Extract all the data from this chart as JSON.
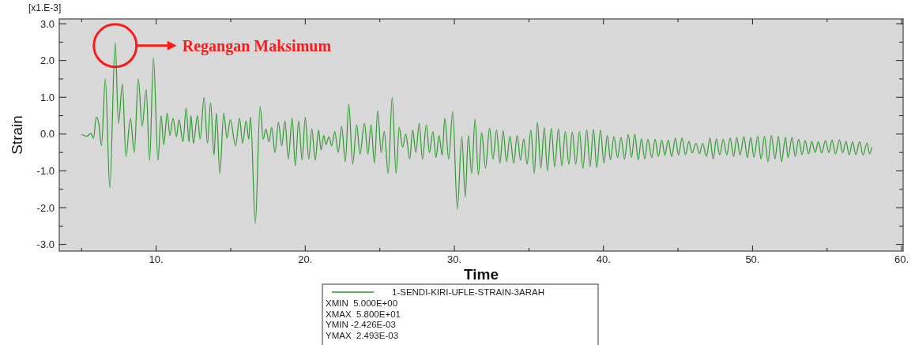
{
  "chart_data": {
    "type": "line",
    "xlabel": "Time",
    "ylabel": "Strain",
    "xlim": [
      3.5,
      60.1
    ],
    "ylim": [
      -3.18,
      3.13
    ],
    "xticks": [
      {
        "value": 5,
        "label": null
      },
      {
        "value": 10,
        "label": "10."
      },
      {
        "value": 15,
        "label": null
      },
      {
        "value": 20,
        "label": "20."
      },
      {
        "value": 25,
        "label": null
      },
      {
        "value": 30,
        "label": "30."
      },
      {
        "value": 35,
        "label": null
      },
      {
        "value": 40,
        "label": "40."
      },
      {
        "value": 45,
        "label": null
      },
      {
        "value": 50,
        "label": "50."
      },
      {
        "value": 55,
        "label": null
      },
      {
        "value": 60,
        "label": "60."
      }
    ],
    "yticks": [
      {
        "value": -3,
        "label": "-3.0"
      },
      {
        "value": -2.5,
        "label": null
      },
      {
        "value": -2,
        "label": "-2.0"
      },
      {
        "value": -1.5,
        "label": null
      },
      {
        "value": -1,
        "label": "-1.0"
      },
      {
        "value": -0.5,
        "label": null
      },
      {
        "value": 0,
        "label": "0.0"
      },
      {
        "value": 0.5,
        "label": null
      },
      {
        "value": 1,
        "label": "1.0"
      },
      {
        "value": 1.5,
        "label": null
      },
      {
        "value": 2,
        "label": "2.0"
      },
      {
        "value": 2.5,
        "label": null
      },
      {
        "value": 3,
        "label": "3.0"
      }
    ],
    "grid": false,
    "legend": "bottom",
    "marker": "none",
    "line_style": "solid",
    "annotations": [
      "[x1.E-3]",
      "Regangan Maksimum",
      "XMIN  5.000E+00",
      "XMAX  5.800E+01",
      "YMIN -2.426E-03",
      "YMAX  2.493E-03"
    ],
    "series": [
      {
        "name": "1-SENDI-KIRI-UFLE-STRAIN-3ARAH",
        "color": "#2e9a2e",
        "x": [
          5.0,
          5.36,
          5.62,
          5.8,
          5.98,
          6.15,
          6.33,
          6.59,
          6.89,
          7.25,
          7.47,
          7.74,
          7.97,
          8.27,
          8.53,
          8.8,
          9.06,
          9.33,
          9.56,
          9.82,
          10.12,
          10.33,
          10.51,
          10.74,
          10.92,
          11.13,
          11.36,
          11.53,
          11.8,
          12.01,
          12.2,
          12.33,
          12.5,
          12.77,
          12.95,
          13.21,
          13.44,
          13.65,
          13.88,
          14.04,
          14.27,
          14.53,
          14.75,
          14.97,
          15.33,
          15.59,
          15.8,
          16.03,
          16.21,
          16.33,
          16.65,
          16.97,
          17.18,
          17.36,
          17.57,
          17.75,
          17.97,
          18.2,
          18.42,
          18.64,
          18.86,
          19.12,
          19.33,
          19.56,
          19.79,
          20.0,
          20.23,
          20.44,
          20.67,
          20.89,
          21.06,
          21.24,
          21.38,
          21.59,
          21.77,
          21.98,
          22.21,
          22.44,
          22.69,
          22.92,
          23.18,
          23.45,
          23.67,
          23.97,
          24.2,
          24.41,
          24.64,
          24.86,
          25.09,
          25.3,
          25.56,
          25.83,
          26.09,
          26.3,
          26.53,
          26.74,
          27.01,
          27.2,
          27.42,
          27.64,
          27.86,
          28.12,
          28.33,
          28.56,
          28.77,
          28.97,
          29.18,
          29.36,
          29.62,
          29.89,
          30.2,
          30.5,
          30.73,
          30.94,
          31.16,
          31.39,
          31.61,
          31.83,
          32.09,
          32.36,
          32.59,
          32.83,
          33.06,
          33.27,
          33.5,
          33.73,
          33.98,
          34.21,
          34.44,
          34.65,
          34.88,
          35.13,
          35.36,
          35.57,
          35.8,
          36.03,
          36.24,
          36.5,
          36.73,
          36.98,
          37.21,
          37.44,
          37.68,
          37.91,
          38.14,
          38.39,
          38.62,
          38.88,
          39.1,
          39.33,
          39.55,
          39.8,
          40.03,
          40.26,
          40.47,
          40.7,
          40.95,
          41.18,
          41.41,
          41.66,
          41.88,
          42.1,
          42.33,
          42.55,
          42.77,
          42.98,
          43.24,
          43.47,
          43.68,
          43.91,
          44.12,
          44.35,
          44.57,
          44.83,
          45.03,
          45.27,
          45.5,
          45.73,
          45.94,
          46.21,
          46.44,
          46.65,
          46.91,
          47.14,
          47.36,
          47.57,
          47.8,
          48.03,
          48.27,
          48.5,
          48.73,
          48.94,
          49.16,
          49.42,
          49.65,
          49.88,
          50.09,
          50.35,
          50.57,
          50.8,
          51.03,
          51.27,
          51.5,
          51.73,
          51.94,
          52.21,
          52.38,
          52.65,
          52.86,
          53.09,
          53.32,
          53.53,
          53.76,
          53.97,
          54.2,
          54.41,
          54.64,
          54.89,
          55.12,
          55.33,
          55.56,
          55.83,
          56.04,
          56.27,
          56.48,
          56.71,
          56.92,
          57.18,
          57.41,
          57.68,
          57.85,
          58.0
        ],
        "values": [
          -0.01,
          -0.06,
          0.02,
          -0.11,
          0.46,
          0.29,
          -0.32,
          1.5,
          -1.46,
          2.49,
          0.29,
          1.36,
          -0.61,
          0.43,
          -0.5,
          1.5,
          0.21,
          1.21,
          -0.71,
          2.07,
          -0.71,
          0.5,
          -0.29,
          0.57,
          -0.04,
          0.43,
          -0.07,
          0.39,
          -0.21,
          0.71,
          -0.21,
          0.5,
          -0.25,
          0.5,
          -0.14,
          1.0,
          -0.25,
          0.86,
          -0.57,
          0.57,
          -1.07,
          0.57,
          -0.11,
          0.39,
          -0.32,
          0.43,
          -0.25,
          0.36,
          -0.14,
          0.46,
          -2.43,
          0.75,
          -0.14,
          0.14,
          -0.21,
          0.18,
          -0.5,
          0.32,
          -0.32,
          0.36,
          -0.68,
          0.43,
          -0.86,
          0.36,
          -0.71,
          0.46,
          -0.68,
          0.14,
          -0.71,
          0.11,
          -0.43,
          -0.04,
          -0.29,
          -0.07,
          -0.32,
          0.07,
          -0.5,
          0.21,
          -0.75,
          0.82,
          -0.82,
          0.25,
          -0.54,
          0.29,
          -0.54,
          0.25,
          -0.79,
          0.64,
          -0.5,
          0.07,
          -1.07,
          1.0,
          -1.07,
          0.18,
          -0.36,
          0.0,
          -0.68,
          0.11,
          -0.5,
          0.29,
          -0.68,
          0.25,
          -0.5,
          0.07,
          -0.64,
          -0.04,
          -0.57,
          0.43,
          -0.68,
          0.61,
          -2.04,
          -0.07,
          -1.71,
          -0.04,
          -1.07,
          0.41,
          -1.11,
          0.04,
          -0.93,
          0.16,
          -0.68,
          0.11,
          -0.79,
          0.09,
          -0.75,
          -0.06,
          -0.79,
          -0.04,
          -0.71,
          -0.13,
          -0.82,
          0.11,
          -1.07,
          0.32,
          -0.93,
          0.18,
          -1.0,
          0.16,
          -0.89,
          0.14,
          -0.86,
          0.07,
          -0.82,
          0.06,
          -0.82,
          0.07,
          -0.93,
          0.11,
          -0.89,
          0.13,
          -0.91,
          0.11,
          -0.79,
          -0.04,
          -0.7,
          -0.07,
          -0.64,
          -0.09,
          -0.68,
          -0.01,
          -0.64,
          0.0,
          -0.7,
          -0.13,
          -0.68,
          -0.14,
          -0.64,
          -0.14,
          -0.61,
          -0.16,
          -0.57,
          -0.16,
          -0.61,
          -0.11,
          -0.57,
          -0.11,
          -0.56,
          -0.2,
          -0.51,
          -0.25,
          -0.54,
          -0.25,
          -0.61,
          -0.11,
          -0.68,
          -0.13,
          -0.57,
          -0.14,
          -0.57,
          -0.11,
          -0.61,
          -0.09,
          -0.57,
          -0.07,
          -0.64,
          -0.09,
          -0.63,
          -0.06,
          -0.68,
          -0.06,
          -0.75,
          -0.04,
          -0.68,
          -0.06,
          -0.75,
          -0.09,
          -0.64,
          -0.09,
          -0.61,
          -0.14,
          -0.56,
          -0.18,
          -0.54,
          -0.2,
          -0.5,
          -0.21,
          -0.51,
          -0.18,
          -0.5,
          -0.16,
          -0.54,
          -0.16,
          -0.51,
          -0.2,
          -0.57,
          -0.21,
          -0.56,
          -0.21,
          -0.57,
          -0.24,
          -0.54,
          -0.36
        ]
      }
    ]
  }
}
